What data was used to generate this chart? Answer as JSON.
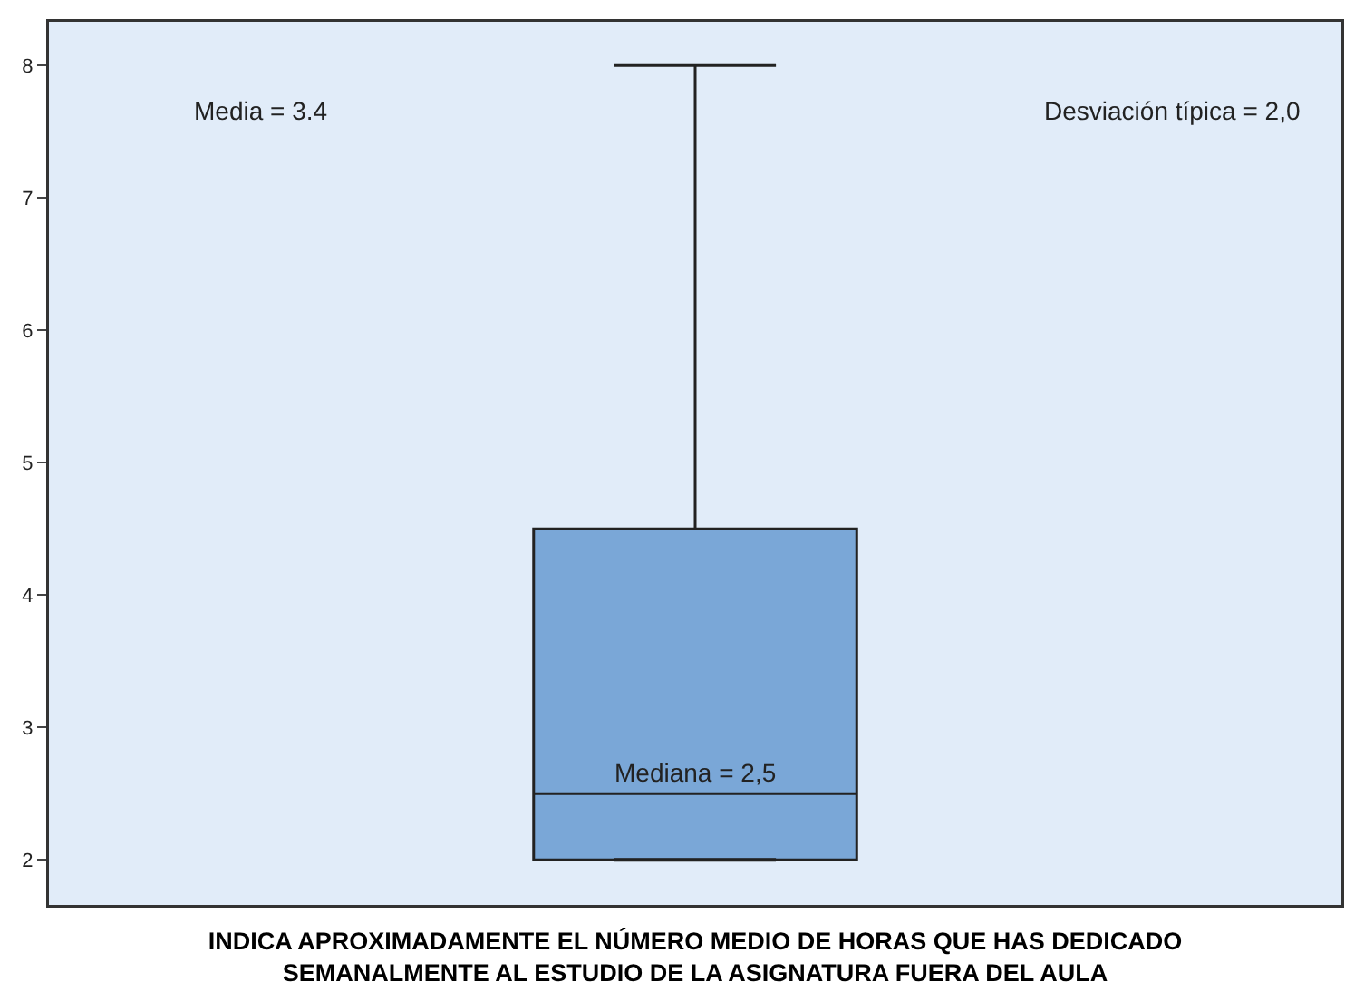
{
  "chart_data": {
    "type": "box",
    "categories": [
      null
    ],
    "xlabel": "INDICA APROXIMADAMENTE EL NÚMERO MEDIO DE HORAS QUE HAS DEDICADO\nSEMANALMENTE AL ESTUDIO DE LA ASIGNATURA FUERA DEL AULA",
    "boxes": [
      {
        "low": 2,
        "q1": 2,
        "median": 2.5,
        "q3": 4.5,
        "high": 8
      }
    ],
    "color": "#7aa7d7",
    "ylim": [
      1.66,
      8.33
    ],
    "yticks": [
      2,
      3,
      4,
      5,
      6,
      7,
      8
    ],
    "grid": false,
    "annotations": [
      "Media = 3.4",
      "Desviación típica = 2,0",
      {
        "text": "Mediana = 2,5",
        "y": 2.5
      }
    ]
  }
}
